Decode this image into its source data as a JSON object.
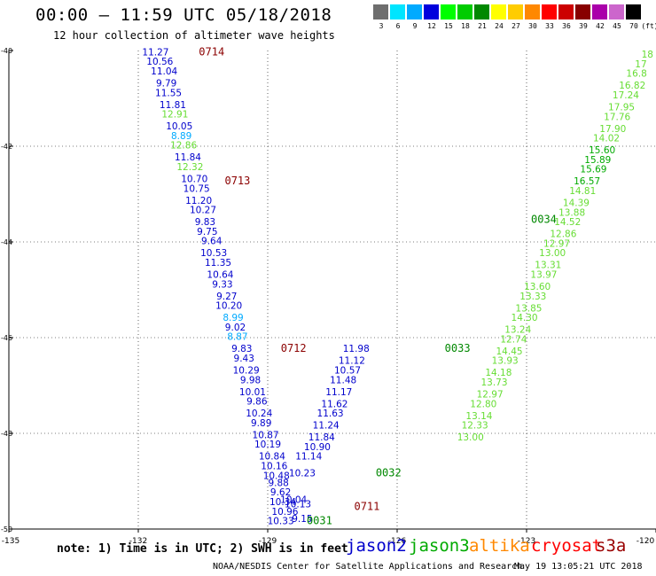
{
  "title": "00:00 – 11:59 UTC 05/18/2018",
  "subtitle": "12 hour collection of altimeter wave heights",
  "legend": {
    "unit": "(ft)",
    "bins": [
      {
        "label": "3",
        "color": "#6e6e6e"
      },
      {
        "label": "6",
        "color": "#00e5ff"
      },
      {
        "label": "9",
        "color": "#00aaff"
      },
      {
        "label": "12",
        "color": "#0000dd"
      },
      {
        "label": "15",
        "color": "#00ff00"
      },
      {
        "label": "18",
        "color": "#00cc00"
      },
      {
        "label": "21",
        "color": "#008800"
      },
      {
        "label": "24",
        "color": "#ffff00"
      },
      {
        "label": "27",
        "color": "#ffcc00"
      },
      {
        "label": "30",
        "color": "#ff8800"
      },
      {
        "label": "33",
        "color": "#ff0000"
      },
      {
        "label": "36",
        "color": "#cc0000"
      },
      {
        "label": "39",
        "color": "#880000"
      },
      {
        "label": "42",
        "color": "#aa00aa"
      },
      {
        "label": "45",
        "color": "#cc66cc"
      },
      {
        "label": "70",
        "color": "#000000"
      }
    ]
  },
  "map": {
    "lon_range": [
      -135,
      -120
    ],
    "lat_range": [
      -50,
      -40
    ],
    "lon_ticks": [
      {
        "value": -135,
        "label": "-135"
      },
      {
        "value": -132,
        "label": "-132"
      },
      {
        "value": -129,
        "label": "-129"
      },
      {
        "value": -126,
        "label": "-126"
      },
      {
        "value": -123,
        "label": "-123"
      },
      {
        "value": -120,
        "label": "-120"
      }
    ],
    "lat_ticks": [
      {
        "value": -40,
        "label": "-40"
      },
      {
        "value": -42,
        "label": "-42"
      },
      {
        "value": -44,
        "label": "-44"
      },
      {
        "value": -46,
        "label": "-46"
      },
      {
        "value": -48,
        "label": "-48"
      },
      {
        "value": -50,
        "label": "-50"
      }
    ]
  },
  "chart_data": {
    "type": "scatter",
    "x_axis": "longitude",
    "y_axis": "latitude",
    "xlim": [
      -135,
      -120
    ],
    "ylim": [
      -50,
      -40
    ],
    "grid": true,
    "tracks": [
      {
        "name": "jason2",
        "color": "#0000cc",
        "time_labels": [
          {
            "text": "0714",
            "lon": -130.3,
            "lat": -40.1,
            "color": "#8b0000"
          },
          {
            "text": "0713",
            "lon": -129.7,
            "lat": -42.8,
            "color": "#8b0000"
          },
          {
            "text": "0712",
            "lon": -128.4,
            "lat": -46.3,
            "color": "#8b0000"
          },
          {
            "text": "0711",
            "lon": -126.7,
            "lat": -49.6,
            "color": "#8b0000"
          }
        ],
        "points": [
          {
            "lon": -131.6,
            "lat": -40.1,
            "value": "11.27"
          },
          {
            "lon": -131.5,
            "lat": -40.3,
            "value": "10.56"
          },
          {
            "lon": -131.4,
            "lat": -40.5,
            "value": "11.04"
          },
          {
            "lon": -131.35,
            "lat": -40.75,
            "value": "9.79"
          },
          {
            "lon": -131.3,
            "lat": -40.95,
            "value": "11.55"
          },
          {
            "lon": -131.2,
            "lat": -41.2,
            "value": "11.81"
          },
          {
            "lon": -131.15,
            "lat": -41.4,
            "value": "12.91",
            "color": "#66dd33"
          },
          {
            "lon": -131.05,
            "lat": -41.65,
            "value": "10.05"
          },
          {
            "lon": -131.0,
            "lat": -41.85,
            "value": "8.89",
            "color": "#00aaff"
          },
          {
            "lon": -130.95,
            "lat": -42.05,
            "value": "12.86",
            "color": "#66dd33"
          },
          {
            "lon": -130.85,
            "lat": -42.3,
            "value": "11.84"
          },
          {
            "lon": -130.8,
            "lat": -42.5,
            "value": "12.32",
            "color": "#66dd33"
          },
          {
            "lon": -130.7,
            "lat": -42.75,
            "value": "10.70"
          },
          {
            "lon": -130.65,
            "lat": -42.95,
            "value": "10.75"
          },
          {
            "lon": -130.6,
            "lat": -43.2,
            "value": "11.20"
          },
          {
            "lon": -130.5,
            "lat": -43.4,
            "value": "10.27"
          },
          {
            "lon": -130.45,
            "lat": -43.65,
            "value": "9.83"
          },
          {
            "lon": -130.4,
            "lat": -43.85,
            "value": "9.75"
          },
          {
            "lon": -130.3,
            "lat": -44.05,
            "value": "9.64"
          },
          {
            "lon": -130.25,
            "lat": -44.3,
            "value": "10.53"
          },
          {
            "lon": -130.15,
            "lat": -44.5,
            "value": "11.35"
          },
          {
            "lon": -130.1,
            "lat": -44.75,
            "value": "10.64"
          },
          {
            "lon": -130.05,
            "lat": -44.95,
            "value": "9.33"
          },
          {
            "lon": -129.95,
            "lat": -45.2,
            "value": "9.27"
          },
          {
            "lon": -129.9,
            "lat": -45.4,
            "value": "10.20"
          },
          {
            "lon": -129.8,
            "lat": -45.65,
            "value": "8.99",
            "color": "#00aaff"
          },
          {
            "lon": -129.75,
            "lat": -45.85,
            "value": "9.02"
          },
          {
            "lon": -129.7,
            "lat": -46.05,
            "value": "8.87",
            "color": "#00aaff"
          },
          {
            "lon": -129.6,
            "lat": -46.3,
            "value": "9.83"
          },
          {
            "lon": -129.55,
            "lat": -46.5,
            "value": "9.43"
          },
          {
            "lon": -129.5,
            "lat": -46.75,
            "value": "10.29"
          },
          {
            "lon": -129.4,
            "lat": -46.95,
            "value": "9.98"
          },
          {
            "lon": -129.35,
            "lat": -47.2,
            "value": "10.01"
          },
          {
            "lon": -129.25,
            "lat": -47.4,
            "value": "9.86"
          },
          {
            "lon": -129.2,
            "lat": -47.65,
            "value": "10.24"
          },
          {
            "lon": -129.15,
            "lat": -47.85,
            "value": "9.89"
          },
          {
            "lon": -129.05,
            "lat": -48.1,
            "value": "10.87"
          },
          {
            "lon": -129.0,
            "lat": -48.3,
            "value": "10.19"
          },
          {
            "lon": -128.9,
            "lat": -48.55,
            "value": "10.84"
          },
          {
            "lon": -128.85,
            "lat": -48.75,
            "value": "10.16"
          },
          {
            "lon": -128.8,
            "lat": -48.95,
            "value": "10.48"
          },
          {
            "lon": -128.75,
            "lat": -49.1,
            "value": "9.88"
          },
          {
            "lon": -128.7,
            "lat": -49.3,
            "value": "9.62"
          },
          {
            "lon": -128.65,
            "lat": -49.5,
            "value": "10.34"
          },
          {
            "lon": -128.6,
            "lat": -49.7,
            "value": "10.96"
          },
          {
            "lon": -128.7,
            "lat": -49.9,
            "value": "10.33"
          },
          {
            "lon": -128.4,
            "lat": -49.45,
            "value": "10.04"
          },
          {
            "lon": -128.3,
            "lat": -49.55,
            "value": "10.13"
          },
          {
            "lon": -128.2,
            "lat": -48.9,
            "value": "10.23"
          },
          {
            "lon": -128.2,
            "lat": -49.85,
            "value": "9.15"
          },
          {
            "lon": -128.05,
            "lat": -48.55,
            "value": "11.14"
          },
          {
            "lon": -127.85,
            "lat": -48.35,
            "value": "10.90"
          },
          {
            "lon": -127.75,
            "lat": -48.15,
            "value": "11.84"
          },
          {
            "lon": -127.65,
            "lat": -47.9,
            "value": "11.24"
          },
          {
            "lon": -127.55,
            "lat": -47.65,
            "value": "11.63"
          },
          {
            "lon": -127.45,
            "lat": -47.45,
            "value": "11.62"
          },
          {
            "lon": -127.35,
            "lat": -47.2,
            "value": "11.17"
          },
          {
            "lon": -127.25,
            "lat": -46.95,
            "value": "11.48"
          },
          {
            "lon": -127.15,
            "lat": -46.75,
            "value": "10.57"
          },
          {
            "lon": -127.05,
            "lat": -46.55,
            "value": "11.12"
          },
          {
            "lon": -126.95,
            "lat": -46.3,
            "value": "11.98"
          }
        ]
      },
      {
        "name": "jason3",
        "color": "#66dd33",
        "time_labels": [
          {
            "text": "0034",
            "lon": -122.6,
            "lat": -43.6,
            "color": "#008800"
          },
          {
            "text": "0033",
            "lon": -124.6,
            "lat": -46.3,
            "color": "#008800"
          },
          {
            "text": "0032",
            "lon": -126.2,
            "lat": -48.9,
            "color": "#008800"
          },
          {
            "lon": -127.8,
            "lat": -49.9,
            "text": "0031",
            "color": "#008800"
          }
        ],
        "points": [
          {
            "lon": -120.2,
            "lat": -40.15,
            "value": "18"
          },
          {
            "lon": -120.35,
            "lat": -40.35,
            "value": "17"
          },
          {
            "lon": -120.45,
            "lat": -40.55,
            "value": "16.8"
          },
          {
            "lon": -120.55,
            "lat": -40.8,
            "value": "16.82"
          },
          {
            "lon": -120.7,
            "lat": -41.0,
            "value": "17.24"
          },
          {
            "lon": -120.8,
            "lat": -41.25,
            "value": "17.95"
          },
          {
            "lon": -120.9,
            "lat": -41.45,
            "value": "17.76"
          },
          {
            "lon": -121.0,
            "lat": -41.7,
            "value": "17.90"
          },
          {
            "lon": -121.15,
            "lat": -41.9,
            "value": "14.02"
          },
          {
            "lon": -121.25,
            "lat": -42.15,
            "value": "15.60",
            "color": "#00aa00"
          },
          {
            "lon": -121.35,
            "lat": -42.35,
            "value": "15.89",
            "color": "#00aa00"
          },
          {
            "lon": -121.45,
            "lat": -42.55,
            "value": "15.69",
            "color": "#00aa00"
          },
          {
            "lon": -121.6,
            "lat": -42.8,
            "value": "16.57",
            "color": "#00aa00"
          },
          {
            "lon": -121.7,
            "lat": -43.0,
            "value": "14.81"
          },
          {
            "lon": -121.85,
            "lat": -43.25,
            "value": "14.39"
          },
          {
            "lon": -121.95,
            "lat": -43.45,
            "value": "13.88"
          },
          {
            "lon": -122.05,
            "lat": -43.65,
            "value": "14.52"
          },
          {
            "lon": -122.15,
            "lat": -43.9,
            "value": "12.86"
          },
          {
            "lon": -122.3,
            "lat": -44.1,
            "value": "12.97"
          },
          {
            "lon": -122.4,
            "lat": -44.3,
            "value": "13.00"
          },
          {
            "lon": -122.5,
            "lat": -44.55,
            "value": "13.31"
          },
          {
            "lon": -122.6,
            "lat": -44.75,
            "value": "13.97"
          },
          {
            "lon": -122.75,
            "lat": -45.0,
            "value": "13.60"
          },
          {
            "lon": -122.85,
            "lat": -45.2,
            "value": "13.33"
          },
          {
            "lon": -122.95,
            "lat": -45.45,
            "value": "13.85"
          },
          {
            "lon": -123.05,
            "lat": -45.65,
            "value": "14.30"
          },
          {
            "lon": -123.2,
            "lat": -45.9,
            "value": "13.24"
          },
          {
            "lon": -123.3,
            "lat": -46.1,
            "value": "12.74"
          },
          {
            "lon": -123.4,
            "lat": -46.35,
            "value": "14.45"
          },
          {
            "lon": -123.5,
            "lat": -46.55,
            "value": "13.93"
          },
          {
            "lon": -123.65,
            "lat": -46.8,
            "value": "14.18"
          },
          {
            "lon": -123.75,
            "lat": -47.0,
            "value": "13.73"
          },
          {
            "lon": -123.85,
            "lat": -47.25,
            "value": "12.97"
          },
          {
            "lon": -124.0,
            "lat": -47.45,
            "value": "12.80"
          },
          {
            "lon": -124.1,
            "lat": -47.7,
            "value": "13.14"
          },
          {
            "lon": -124.2,
            "lat": -47.9,
            "value": "12.33"
          },
          {
            "lon": -124.3,
            "lat": -48.15,
            "value": "13.00"
          }
        ]
      }
    ]
  },
  "note": "note: 1) Time is in UTC; 2) SWH is in feet",
  "missions": [
    {
      "name": "jason2",
      "color": "#0000cc"
    },
    {
      "name": "jason3",
      "color": "#00aa00"
    },
    {
      "name": "altika",
      "color": "#ff8800"
    },
    {
      "name": "cryosat",
      "color": "#ff0000"
    },
    {
      "name": "s3a",
      "color": "#990000"
    }
  ],
  "credit": "NOAA/NESDIS Center for Satellite Applications and Research",
  "timestamp": "May 19 13:05:21 UTC 2018"
}
